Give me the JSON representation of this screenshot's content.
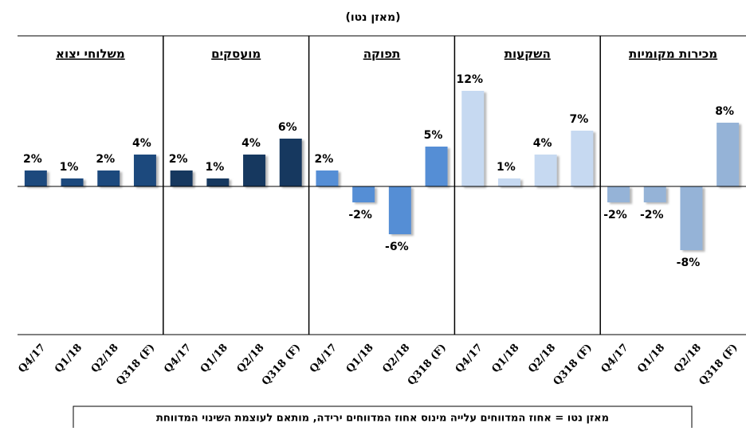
{
  "title": "(מאזן נטו)",
  "note": "מאזן נטו = אחוז המדווחים עלייה מינוס אחוז המדווחים ירידה, מותאם לעוצמת השינוי המדווחת",
  "chart_data": [
    {
      "type": "bar",
      "title": "משלוחי יצוא",
      "categories": [
        "Q4/17",
        "Q1/18",
        "Q2/18",
        "Q318 (F)"
      ],
      "values": [
        2,
        1,
        2,
        4
      ],
      "value_labels": [
        "2%",
        "1%",
        "2%",
        "4%"
      ],
      "color": "#1f497d",
      "ylim": [
        -18.6,
        18.9
      ]
    },
    {
      "type": "bar",
      "title": "מועסקים",
      "categories": [
        "Q4/17",
        "Q1/18",
        "Q2/18",
        "Q318 (F)"
      ],
      "values": [
        2,
        1,
        4,
        6
      ],
      "value_labels": [
        "2%",
        "1%",
        "4%",
        "6%"
      ],
      "color": "#17375e",
      "ylim": [
        -18.6,
        18.9
      ]
    },
    {
      "type": "bar",
      "title": "תפוקה",
      "categories": [
        "Q4/17",
        "Q1/18",
        "Q2/18",
        "Q318 (F)"
      ],
      "values": [
        2,
        -2,
        -6,
        5
      ],
      "value_labels": [
        "2%",
        "-2%",
        "-6%",
        "5%"
      ],
      "color": "#558ed5",
      "ylim": [
        -18.6,
        18.9
      ]
    },
    {
      "type": "bar",
      "title": "השקעות",
      "categories": [
        "Q4/17",
        "Q1/18",
        "Q2/18",
        "Q318 (F)"
      ],
      "values": [
        12,
        1,
        4,
        7
      ],
      "value_labels": [
        "12%",
        "1%",
        "4%",
        "7%"
      ],
      "color": "#c6d9f1",
      "ylim": [
        -18.6,
        18.9
      ]
    },
    {
      "type": "bar",
      "title": "מכירות מקומיות",
      "categories": [
        "Q4/17",
        "Q1/18",
        "Q2/18",
        "Q318 (F)"
      ],
      "values": [
        -2,
        -2,
        -8,
        8
      ],
      "value_labels": [
        "-2%",
        "-2%",
        "-8%",
        "8%"
      ],
      "color": "#95b3d7",
      "ylim": [
        -18.6,
        18.9
      ]
    }
  ]
}
